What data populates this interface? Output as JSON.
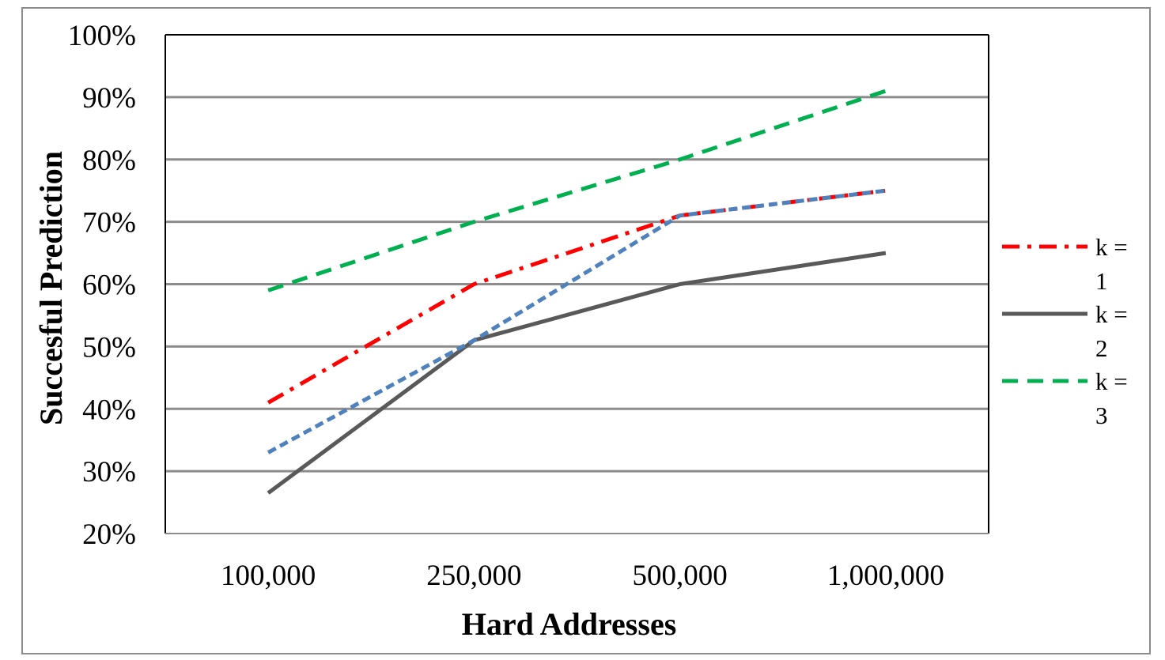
{
  "chart_data": {
    "type": "line",
    "categories": [
      "100,000",
      "250,000",
      "500,000",
      "1,000,000"
    ],
    "series": [
      {
        "name": "k = 1",
        "values": [
          41,
          60,
          71,
          75
        ],
        "color": "#ff0000",
        "dash": "dash-dot"
      },
      {
        "name": "k = 2",
        "values": [
          26.5,
          51,
          60,
          65
        ],
        "color": "#595959",
        "dash": "solid"
      },
      {
        "name": "k = 3",
        "values": [
          59,
          70,
          80,
          91
        ],
        "color": "#00b050",
        "dash": "dashed"
      },
      {
        "name": "",
        "values": [
          33,
          51,
          71,
          75
        ],
        "color": "#4f81bd",
        "dash": "short-dash"
      }
    ],
    "xlabel": "Hard Addresses",
    "ylabel": "Succesful Prediction",
    "ylim": [
      20,
      100
    ],
    "yticks": [
      "20%",
      "30%",
      "40%",
      "50%",
      "60%",
      "70%",
      "80%",
      "90%",
      "100%"
    ],
    "grid": true,
    "legend": "right"
  }
}
